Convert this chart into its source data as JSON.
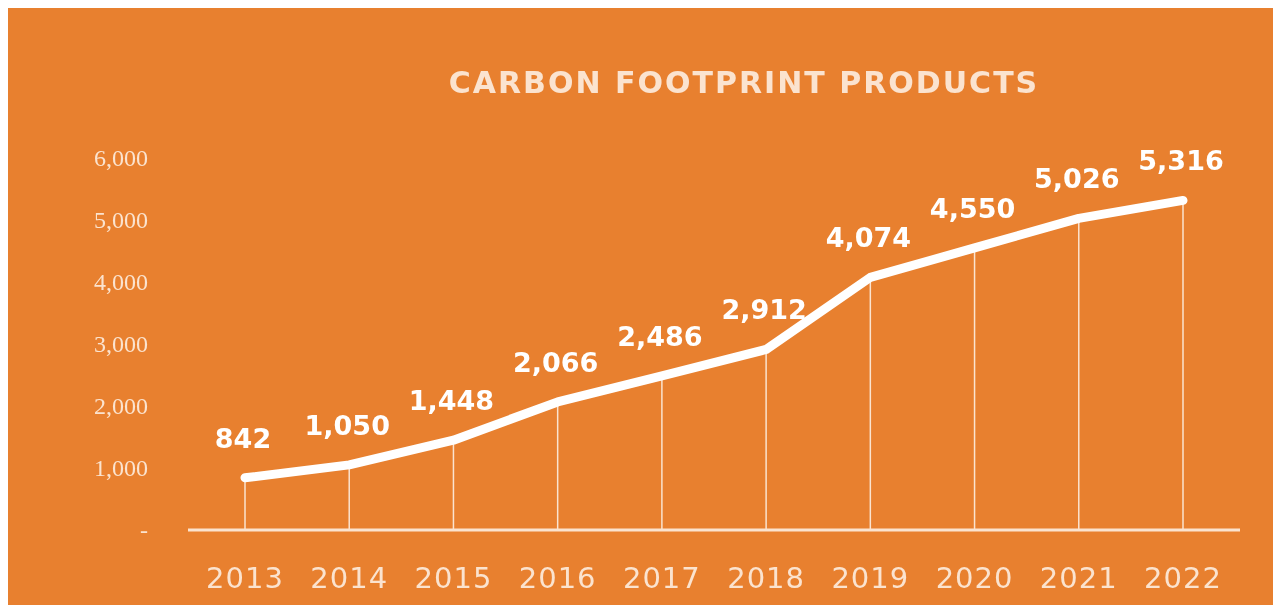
{
  "chart_data": {
    "type": "line",
    "title": "CARBON FOOTPRINT PRODUCTS",
    "categories": [
      "2013",
      "2014",
      "2015",
      "2016",
      "2017",
      "2018",
      "2019",
      "2020",
      "2021",
      "2022"
    ],
    "series": [
      {
        "color": "#ffffff",
        "values": [
          842,
          1050,
          1448,
          2066,
          2486,
          2912,
          4074,
          4550,
          5026,
          5316
        ],
        "value_labels": [
          "842",
          "1,050",
          "1,448",
          "2,066",
          "2,486",
          "2,912",
          "4,074",
          "4,550",
          "5,026",
          "5,316"
        ]
      }
    ],
    "ylim": [
      0,
      6000
    ],
    "yticks": [
      {
        "value": 0,
        "label": "-"
      },
      {
        "value": 1000,
        "label": "1,000"
      },
      {
        "value": 2000,
        "label": "2,000"
      },
      {
        "value": 3000,
        "label": "3,000"
      },
      {
        "value": 4000,
        "label": "4,000"
      },
      {
        "value": 5000,
        "label": "5,000"
      },
      {
        "value": 6000,
        "label": "6,000"
      }
    ],
    "grid": "x",
    "marker": "none",
    "line_style": "solid"
  }
}
